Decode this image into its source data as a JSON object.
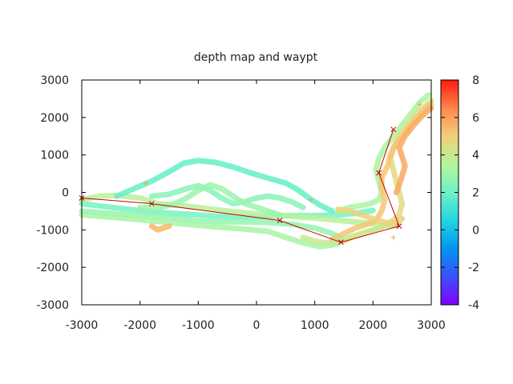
{
  "chart_data": {
    "type": "scatter",
    "title": "depth map  and waypt",
    "xlabel": "",
    "ylabel": "",
    "xlim": [
      -3000,
      3000
    ],
    "ylim": [
      -3000,
      3000
    ],
    "x_ticks": [
      -3000,
      -2000,
      -1000,
      0,
      1000,
      2000,
      3000
    ],
    "y_ticks": [
      -3000,
      -2000,
      -1000,
      0,
      1000,
      2000,
      3000
    ],
    "grid": false,
    "colorbar": {
      "range": [
        -4,
        8
      ],
      "ticks": [
        -4,
        -2,
        0,
        2,
        4,
        6,
        8
      ],
      "palette": "rainbow"
    },
    "depth_tracks": [
      {
        "points": [
          [
            -3000,
            -300
          ],
          [
            -2600,
            -380
          ],
          [
            -2200,
            -450
          ],
          [
            -1800,
            -520
          ],
          [
            -1400,
            -560
          ],
          [
            -1000,
            -600
          ],
          [
            -600,
            -640
          ],
          [
            -200,
            -660
          ],
          [
            200,
            -640
          ],
          [
            600,
            -620
          ],
          [
            1000,
            -620
          ],
          [
            1400,
            -600
          ],
          [
            1700,
            -560
          ],
          [
            2000,
            -480
          ]
        ],
        "value": 2.2
      },
      {
        "points": [
          [
            -3000,
            -500
          ],
          [
            -2600,
            -550
          ],
          [
            -2200,
            -600
          ],
          [
            -1800,
            -650
          ],
          [
            -1400,
            -700
          ],
          [
            -1000,
            -760
          ],
          [
            -600,
            -780
          ],
          [
            -200,
            -790
          ],
          [
            200,
            -800
          ],
          [
            600,
            -850
          ],
          [
            1000,
            -950
          ],
          [
            1300,
            -1100
          ],
          [
            1500,
            -1250
          ]
        ],
        "value": 2.8
      },
      {
        "points": [
          [
            -3000,
            -600
          ],
          [
            -2600,
            -650
          ],
          [
            -2200,
            -700
          ],
          [
            -1800,
            -760
          ],
          [
            -1400,
            -820
          ],
          [
            -1000,
            -880
          ],
          [
            -600,
            -930
          ],
          [
            -200,
            -980
          ],
          [
            200,
            -1040
          ],
          [
            500,
            -1200
          ],
          [
            800,
            -1350
          ],
          [
            1100,
            -1450
          ],
          [
            1400,
            -1380
          ]
        ],
        "value": 3.2
      },
      {
        "points": [
          [
            -3000,
            -200
          ],
          [
            -2700,
            -100
          ],
          [
            -2400,
            -80
          ],
          [
            -2000,
            -150
          ],
          [
            -1700,
            -300
          ],
          [
            -1300,
            -350
          ],
          [
            -900,
            -420
          ],
          [
            -500,
            -500
          ],
          [
            -100,
            -560
          ],
          [
            300,
            -600
          ],
          [
            700,
            -650
          ],
          [
            1100,
            -700
          ],
          [
            1500,
            -760
          ],
          [
            1800,
            -800
          ],
          [
            2100,
            -850
          ],
          [
            2400,
            -900
          ]
        ],
        "value": 3.6
      },
      {
        "points": [
          [
            -2400,
            -100
          ],
          [
            -2100,
            100
          ],
          [
            -1800,
            300
          ],
          [
            -1500,
            550
          ],
          [
            -1250,
            780
          ],
          [
            -1000,
            850
          ],
          [
            -700,
            800
          ],
          [
            -400,
            680
          ],
          [
            -100,
            520
          ],
          [
            200,
            380
          ],
          [
            500,
            250
          ],
          [
            700,
            80
          ],
          [
            900,
            -150
          ],
          [
            1100,
            -350
          ],
          [
            1300,
            -500
          ]
        ],
        "value": 1.8
      },
      {
        "points": [
          [
            -1800,
            -100
          ],
          [
            -1500,
            -50
          ],
          [
            -1200,
            100
          ],
          [
            -1000,
            180
          ],
          [
            -800,
            60
          ],
          [
            -600,
            -150
          ],
          [
            -400,
            -300
          ],
          [
            -200,
            -250
          ],
          [
            0,
            -150
          ],
          [
            200,
            -100
          ],
          [
            400,
            -150
          ],
          [
            600,
            -250
          ],
          [
            800,
            -400
          ]
        ],
        "value": 2.5
      },
      {
        "points": [
          [
            -2000,
            -400
          ],
          [
            -1700,
            -420
          ],
          [
            -1400,
            -300
          ],
          [
            -1200,
            -150
          ],
          [
            -1000,
            50
          ],
          [
            -800,
            200
          ],
          [
            -600,
            100
          ],
          [
            -400,
            -100
          ],
          [
            -200,
            -300
          ],
          [
            0,
            -400
          ],
          [
            200,
            -500
          ],
          [
            400,
            -600
          ]
        ],
        "value": 2.9
      },
      {
        "points": [
          [
            1400,
            -500
          ],
          [
            1600,
            -400
          ],
          [
            1800,
            -350
          ],
          [
            1950,
            -300
          ],
          [
            2100,
            -200
          ],
          [
            2150,
            0
          ],
          [
            2100,
            300
          ],
          [
            2050,
            600
          ],
          [
            2100,
            900
          ],
          [
            2200,
            1200
          ],
          [
            2350,
            1500
          ],
          [
            2500,
            1800
          ],
          [
            2650,
            2100
          ],
          [
            2800,
            2400
          ],
          [
            2950,
            2600
          ]
        ],
        "value": 3.3
      },
      {
        "points": [
          [
            1500,
            -1300
          ],
          [
            1700,
            -1150
          ],
          [
            1900,
            -1050
          ],
          [
            2100,
            -950
          ],
          [
            2300,
            -800
          ],
          [
            2450,
            -600
          ],
          [
            2500,
            -300
          ],
          [
            2450,
            0
          ],
          [
            2400,
            300
          ],
          [
            2350,
            600
          ],
          [
            2300,
            900
          ],
          [
            2350,
            1200
          ],
          [
            2450,
            1500
          ],
          [
            2600,
            1800
          ],
          [
            2750,
            2100
          ],
          [
            2900,
            2300
          ],
          [
            3000,
            2450
          ]
        ],
        "value": 4.6
      },
      {
        "points": [
          [
            1300,
            -1250
          ],
          [
            1500,
            -1100
          ],
          [
            1700,
            -950
          ],
          [
            1900,
            -850
          ],
          [
            2050,
            -750
          ],
          [
            2150,
            -500
          ],
          [
            2200,
            -200
          ],
          [
            2150,
            100
          ],
          [
            2150,
            400
          ],
          [
            2250,
            700
          ],
          [
            2300,
            1000
          ],
          [
            2400,
            1300
          ],
          [
            2550,
            1600
          ],
          [
            2700,
            1900
          ],
          [
            2850,
            2150
          ],
          [
            3000,
            2350
          ]
        ],
        "value": 5.2
      },
      {
        "points": [
          [
            2400,
            0
          ],
          [
            2450,
            200
          ],
          [
            2500,
            450
          ],
          [
            2550,
            700
          ],
          [
            2500,
            950
          ],
          [
            2450,
            1200
          ],
          [
            2550,
            1500
          ],
          [
            2700,
            1800
          ],
          [
            2850,
            2050
          ],
          [
            3000,
            2250
          ]
        ],
        "value": 5.8
      },
      {
        "points": [
          [
            800,
            -1200
          ],
          [
            1000,
            -1300
          ],
          [
            1200,
            -1350
          ],
          [
            1400,
            -1300
          ],
          [
            1600,
            -1200
          ],
          [
            1800,
            -1100
          ],
          [
            2000,
            -1000
          ],
          [
            2200,
            -900
          ],
          [
            2400,
            -850
          ]
        ],
        "value": 3.9
      },
      {
        "points": [
          [
            1400,
            -450
          ],
          [
            1600,
            -500
          ],
          [
            1800,
            -600
          ],
          [
            2000,
            -700
          ],
          [
            2200,
            -800
          ],
          [
            2400,
            -820
          ],
          [
            2500,
            -700
          ]
        ],
        "value": 4.9
      },
      {
        "points": [
          [
            -1800,
            -900
          ],
          [
            -1700,
            -1000
          ],
          [
            -1600,
            -950
          ],
          [
            -1500,
            -900
          ]
        ],
        "value": 5.5
      }
    ],
    "waypoints": {
      "x": [
        -3000,
        -1800,
        400,
        1450,
        2450,
        2100,
        2350
      ],
      "y": [
        -150,
        -300,
        -750,
        -1330,
        -900,
        520,
        1680
      ]
    },
    "extra_markers": [
      {
        "x": -1900,
        "y": 250
      },
      {
        "x": 930,
        "y": -200
      },
      {
        "x": 2800,
        "y": 2350
      },
      {
        "x": 2350,
        "y": -1200
      }
    ]
  }
}
